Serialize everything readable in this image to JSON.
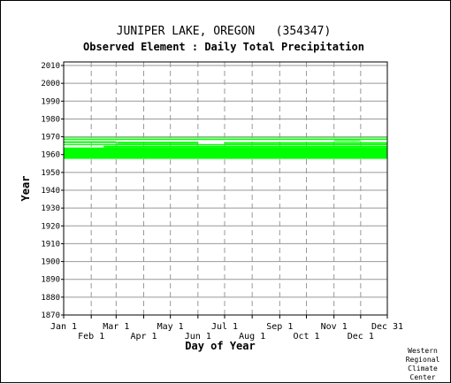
{
  "chart_data": {
    "type": "heatmap",
    "title": "JUNIPER LAKE, OREGON   (354347)",
    "subtitle": "Observed Element : Daily Total Precipitation",
    "xlabel": "Day of Year",
    "ylabel": "Year",
    "x_ticks_top": [
      "Jan 1",
      "Mar 1",
      "May 1",
      "Jul 1",
      "Sep 1",
      "Nov 1",
      "Dec 31"
    ],
    "x_ticks_bottom": [
      "Feb 1",
      "Apr 1",
      "Jun 1",
      "Aug 1",
      "Oct 1",
      "Dec 1"
    ],
    "x_tick_days": [
      1,
      32,
      60,
      91,
      121,
      152,
      182,
      213,
      244,
      274,
      305,
      335,
      365
    ],
    "ylim": [
      1870,
      2012
    ],
    "y_ticks": [
      1870,
      1880,
      1890,
      1900,
      1910,
      1920,
      1930,
      1940,
      1950,
      1960,
      1970,
      1980,
      1990,
      2000,
      2010
    ],
    "grid": true,
    "data_color": "#00ff00",
    "grid_color": "#999999",
    "observed_periods": [
      {
        "year_start": 1957.6,
        "year_end": 1964.0,
        "day_start": 1,
        "day_end": 365
      },
      {
        "year_start": 1965.3,
        "year_end": 1965.9,
        "day_start": 1,
        "day_end": 365
      },
      {
        "year_start": 1964.0,
        "year_end": 1965.0,
        "day_start": 46,
        "day_end": 365
      },
      {
        "year_start": 1966.5,
        "year_end": 1967.5,
        "day_start": 1,
        "day_end": 60
      },
      {
        "year_start": 1966.0,
        "year_end": 1967.2,
        "day_start": 61,
        "day_end": 152
      },
      {
        "year_start": 1966.0,
        "year_end": 1967.0,
        "day_start": 182,
        "day_end": 365
      },
      {
        "year_start": 1967.5,
        "year_end": 1968.0,
        "day_start": 305,
        "day_end": 335
      },
      {
        "year_start": 1968.2,
        "year_end": 1968.8,
        "day_start": 1,
        "day_end": 365
      },
      {
        "year_start": 1969.2,
        "year_end": 1969.6,
        "day_start": 1,
        "day_end": 365
      }
    ]
  },
  "footer": {
    "credit_lines": [
      "Western",
      "Regional",
      "Climate",
      "Center"
    ]
  }
}
